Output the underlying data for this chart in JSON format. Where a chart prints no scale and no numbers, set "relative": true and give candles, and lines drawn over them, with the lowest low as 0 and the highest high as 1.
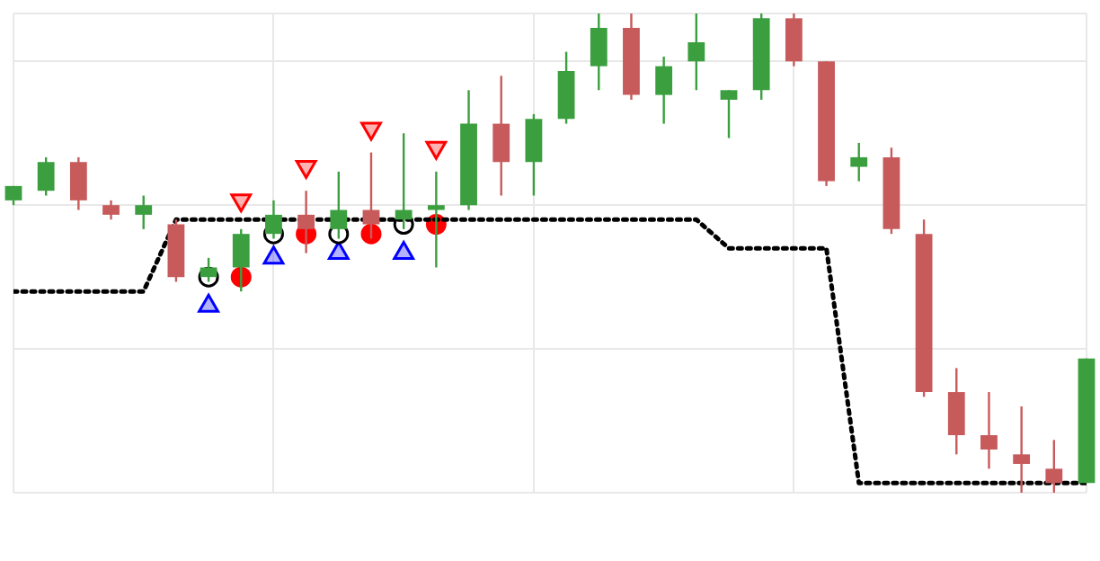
{
  "chart_data": {
    "type": "candlestick",
    "relative": true,
    "grid": true,
    "legend": false,
    "categories": [
      null,
      null,
      null,
      null,
      null,
      null,
      null,
      null,
      null,
      null,
      null,
      null,
      null,
      null,
      null,
      null,
      null,
      null,
      null,
      null,
      null,
      null,
      null,
      null,
      null,
      null,
      null,
      null,
      null,
      null,
      null,
      null,
      null,
      null
    ],
    "ohlc": [
      [
        0.61,
        0.64,
        0.6,
        0.64
      ],
      [
        0.63,
        0.7,
        0.62,
        0.69
      ],
      [
        0.69,
        0.7,
        0.59,
        0.61
      ],
      [
        0.6,
        0.61,
        0.57,
        0.58
      ],
      [
        0.58,
        0.62,
        0.55,
        0.6
      ],
      [
        0.56,
        0.57,
        0.44,
        0.45
      ],
      [
        0.45,
        0.49,
        0.44,
        0.47
      ],
      [
        0.47,
        0.55,
        0.42,
        0.54
      ],
      [
        0.54,
        0.61,
        0.53,
        0.58
      ],
      [
        0.58,
        0.63,
        0.5,
        0.55
      ],
      [
        0.55,
        0.67,
        0.53,
        0.59
      ],
      [
        0.59,
        0.71,
        0.53,
        0.56
      ],
      [
        0.57,
        0.75,
        0.55,
        0.59
      ],
      [
        0.59,
        0.67,
        0.47,
        0.6
      ],
      [
        0.6,
        0.84,
        0.59,
        0.77
      ],
      [
        0.77,
        0.87,
        0.62,
        0.69
      ],
      [
        0.69,
        0.79,
        0.62,
        0.78
      ],
      [
        0.78,
        0.92,
        0.77,
        0.88
      ],
      [
        0.89,
        1,
        0.84,
        0.97
      ],
      [
        0.97,
        1,
        0.82,
        0.83
      ],
      [
        0.83,
        0.91,
        0.77,
        0.89
      ],
      [
        0.9,
        1,
        0.84,
        0.94
      ],
      [
        0.82,
        0.84,
        0.74,
        0.84
      ],
      [
        0.84,
        1,
        0.82,
        0.99
      ],
      [
        0.99,
        1,
        0.89,
        0.9
      ],
      [
        0.9,
        0.9,
        0.64,
        0.65
      ],
      [
        0.68,
        0.73,
        0.65,
        0.7
      ],
      [
        0.7,
        0.72,
        0.54,
        0.55
      ],
      [
        0.54,
        0.57,
        0.2,
        0.21
      ],
      [
        0.21,
        0.26,
        0.08,
        0.12
      ],
      [
        0.12,
        0.21,
        0.05,
        0.09
      ],
      [
        0.08,
        0.18,
        0,
        0.06
      ],
      [
        0.05,
        0.11,
        0,
        0.02
      ],
      [
        0.02,
        0.28,
        0.02,
        0.28
      ]
    ],
    "colors": [
      "#3b9f3f",
      "#3b9f3f",
      "#c75b5b",
      "#c75b5b",
      "#3b9f3f",
      "#c75b5b",
      "#3b9f3f",
      "#3b9f3f",
      "#3b9f3f",
      "#c75b5b",
      "#3b9f3f",
      "#c75b5b",
      "#3b9f3f",
      "#3b9f3f",
      "#3b9f3f",
      "#c75b5b",
      "#3b9f3f",
      "#3b9f3f",
      "#3b9f3f",
      "#c75b5b",
      "#3b9f3f",
      "#3b9f3f",
      "#3b9f3f",
      "#3b9f3f",
      "#c75b5b",
      "#c75b5b",
      "#3b9f3f",
      "#c75b5b",
      "#c75b5b",
      "#c75b5b",
      "#c75b5b",
      "#c75b5b",
      "#c75b5b",
      "#3b9f3f"
    ],
    "series": [
      {
        "type": "line",
        "color": "#000000",
        "line_style": "dotted",
        "marker": "none",
        "values": [
          0.42,
          0.42,
          0.42,
          0.42,
          0.42,
          0.57,
          0.57,
          0.57,
          0.57,
          0.57,
          0.57,
          0.57,
          0.57,
          0.57,
          0.57,
          0.57,
          0.57,
          0.57,
          0.57,
          0.57,
          0.57,
          0.57,
          0.51,
          0.51,
          0.51,
          0.51,
          0.02,
          0.02,
          0.02,
          0.02,
          0.02,
          0.02,
          0.02,
          0.02
        ]
      },
      {
        "type": "scatter",
        "color": "#000000",
        "marker": "circle",
        "values": [
          null,
          null,
          null,
          null,
          null,
          null,
          0.45,
          null,
          0.54,
          null,
          0.54,
          null,
          0.56,
          null,
          null,
          null,
          null,
          null,
          null,
          null,
          null,
          null,
          null,
          null,
          null,
          null,
          null,
          null,
          null,
          null,
          null,
          null,
          null,
          null
        ]
      },
      {
        "type": "scatter",
        "color": "#ff0000",
        "marker": "circle",
        "values": [
          null,
          null,
          null,
          null,
          null,
          null,
          null,
          0.45,
          null,
          0.54,
          null,
          0.54,
          null,
          0.56,
          null,
          null,
          null,
          null,
          null,
          null,
          null,
          null,
          null,
          null,
          null,
          null,
          null,
          null,
          null,
          null,
          null,
          null,
          null,
          null
        ]
      },
      {
        "type": "scatter",
        "color": "#0000ff",
        "marker": "triangle",
        "values": [
          null,
          null,
          null,
          null,
          null,
          null,
          0.39,
          null,
          0.49,
          null,
          0.5,
          null,
          0.5,
          null,
          null,
          null,
          null,
          null,
          null,
          null,
          null,
          null,
          null,
          null,
          null,
          null,
          null,
          null,
          null,
          null,
          null,
          null,
          null,
          null
        ]
      },
      {
        "type": "scatter",
        "color": "#ff0000",
        "marker": "triangle-down",
        "values": [
          null,
          null,
          null,
          null,
          null,
          null,
          null,
          0.61,
          null,
          0.68,
          null,
          0.76,
          null,
          0.72,
          null,
          null,
          null,
          null,
          null,
          null,
          null,
          null,
          null,
          null,
          null,
          null,
          null,
          null,
          null,
          null,
          null,
          null,
          null,
          null
        ]
      }
    ]
  }
}
